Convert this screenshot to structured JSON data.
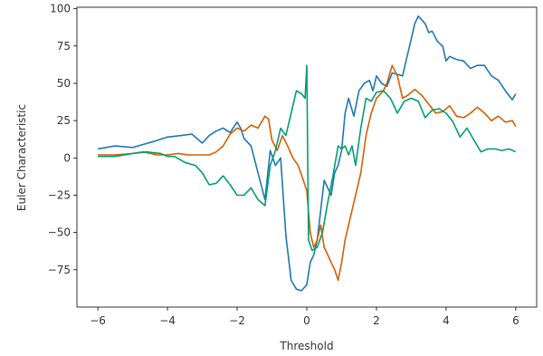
{
  "chart_data": {
    "type": "line",
    "title": "",
    "xlabel": "Threshold",
    "ylabel": "Euler Characteristic",
    "xlim": [
      -6.6,
      6.6
    ],
    "ylim": [
      -100,
      101
    ],
    "xticks": [
      -6,
      -4,
      -2,
      0,
      2,
      4,
      6
    ],
    "xtick_labels": [
      "−6",
      "−4",
      "−2",
      "0",
      "2",
      "4",
      "6"
    ],
    "yticks": [
      100,
      75,
      50,
      25,
      0,
      -25,
      -50,
      -75
    ],
    "ytick_labels": [
      "100",
      "75",
      "50",
      "25",
      "0",
      "−25",
      "−50",
      "−75"
    ],
    "grid": false,
    "series": [
      {
        "color": "#1f77b4",
        "x": [
          -6,
          -5.5,
          -5,
          -4.7,
          -4.4,
          -4,
          -3.6,
          -3.3,
          -3,
          -2.8,
          -2.6,
          -2.4,
          -2.2,
          -2,
          -1.9,
          -1.8,
          -1.6,
          -1.4,
          -1.2,
          -1.05,
          -0.9,
          -0.75,
          -0.6,
          -0.45,
          -0.3,
          -0.15,
          0,
          0.1,
          0.2,
          0.3,
          0.4,
          0.5,
          0.6,
          0.7,
          0.8,
          0.9,
          1,
          1.1,
          1.2,
          1.35,
          1.5,
          1.65,
          1.8,
          1.9,
          2,
          2.15,
          2.3,
          2.45,
          2.6,
          2.75,
          2.9,
          3,
          3.1,
          3.2,
          3.4,
          3.5,
          3.6,
          3.75,
          3.9,
          4,
          4.1,
          4.3,
          4.5,
          4.7,
          4.9,
          5.1,
          5.3,
          5.5,
          5.7,
          5.9,
          6
        ],
        "y": [
          6,
          8,
          7,
          9,
          11,
          14,
          15,
          16,
          10,
          15,
          18,
          20,
          17,
          24,
          20,
          13,
          8,
          -10,
          -28,
          5,
          -5,
          0,
          -52,
          -82,
          -88,
          -89,
          -85,
          -70,
          -65,
          -55,
          -35,
          -15,
          -20,
          -25,
          -10,
          -5,
          5,
          30,
          40,
          28,
          45,
          50,
          52,
          45,
          55,
          50,
          48,
          57,
          56,
          55,
          70,
          80,
          90,
          95,
          90,
          84,
          85,
          78,
          75,
          65,
          68,
          66,
          65,
          60,
          62,
          62,
          55,
          52,
          45,
          39,
          43
        ]
      },
      {
        "color": "#d55e00",
        "x": [
          -6,
          -5.5,
          -5,
          -4.7,
          -4.3,
          -4,
          -3.7,
          -3.4,
          -3,
          -2.8,
          -2.6,
          -2.4,
          -2.2,
          -2,
          -1.8,
          -1.6,
          -1.4,
          -1.2,
          -1.1,
          -1.0,
          -0.85,
          -0.7,
          -0.55,
          -0.4,
          -0.25,
          -0.1,
          0,
          0.1,
          0.2,
          0.3,
          0.4,
          0.5,
          0.6,
          0.7,
          0.8,
          0.9,
          1,
          1.1,
          1.2,
          1.3,
          1.4,
          1.55,
          1.7,
          1.85,
          2,
          2.2,
          2.3,
          2.45,
          2.6,
          2.75,
          2.9,
          3.1,
          3.3,
          3.5,
          3.7,
          3.9,
          4.1,
          4.3,
          4.5,
          4.7,
          4.9,
          5.1,
          5.3,
          5.5,
          5.7,
          5.9,
          6
        ],
        "y": [
          2,
          2,
          3,
          4,
          2,
          2,
          3,
          2,
          2,
          2,
          4,
          8,
          16,
          20,
          18,
          22,
          20,
          28,
          26,
          12,
          5,
          15,
          8,
          0,
          -5,
          -15,
          -22,
          -50,
          -60,
          -55,
          -45,
          -60,
          -65,
          -70,
          -75,
          -82,
          -70,
          -55,
          -45,
          -35,
          -25,
          -10,
          15,
          30,
          40,
          45,
          50,
          62,
          55,
          40,
          42,
          46,
          42,
          36,
          30,
          31,
          35,
          28,
          27,
          30,
          34,
          30,
          25,
          28,
          24,
          25,
          21
        ]
      },
      {
        "color": "#009e73",
        "x": [
          -6,
          -5.5,
          -5,
          -4.6,
          -4.2,
          -4,
          -3.8,
          -3.5,
          -3.2,
          -3,
          -2.8,
          -2.6,
          -2.4,
          -2.2,
          -2,
          -1.8,
          -1.6,
          -1.4,
          -1.2,
          -1.05,
          -0.9,
          -0.75,
          -0.6,
          -0.45,
          -0.3,
          -0.15,
          -0.05,
          0,
          0.05,
          0.15,
          0.3,
          0.45,
          0.6,
          0.75,
          0.9,
          1,
          1.1,
          1.2,
          1.3,
          1.4,
          1.55,
          1.7,
          1.85,
          2,
          2.2,
          2.4,
          2.6,
          2.8,
          3,
          3.2,
          3.4,
          3.6,
          3.8,
          4,
          4.2,
          4.4,
          4.6,
          4.8,
          5,
          5.2,
          5.4,
          5.6,
          5.8,
          6
        ],
        "y": [
          1,
          1,
          3,
          4,
          3,
          1,
          1,
          -3,
          -5,
          -10,
          -18,
          -17,
          -12,
          -18,
          -25,
          -25,
          -20,
          -28,
          -32,
          -5,
          5,
          20,
          15,
          30,
          45,
          43,
          40,
          62,
          -55,
          -62,
          -60,
          -50,
          -30,
          -12,
          8,
          6,
          8,
          2,
          8,
          -5,
          20,
          40,
          38,
          44,
          45,
          40,
          30,
          38,
          40,
          38,
          27,
          32,
          33,
          30,
          24,
          14,
          20,
          12,
          4,
          6,
          6,
          5,
          6,
          4
        ]
      }
    ]
  }
}
